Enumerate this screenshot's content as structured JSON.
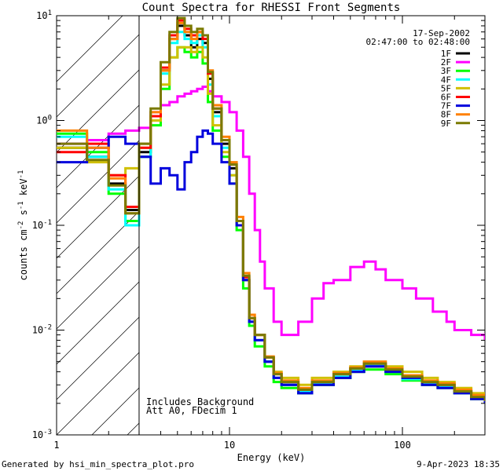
{
  "chart_data": {
    "type": "line",
    "title": "Count Spectra for RHESSI Front Segments",
    "xlabel": "Energy (keV)",
    "ylabel": "counts cm-2 s-1 keV-1",
    "xscale": "log",
    "yscale": "log",
    "xlim": [
      1,
      300
    ],
    "ylim": [
      0.001,
      10
    ],
    "x_ticks": [
      {
        "value": 1,
        "label": "1"
      },
      {
        "value": 10,
        "label": "10"
      },
      {
        "value": 100,
        "label": "100"
      }
    ],
    "y_ticks": [
      {
        "value": 0.001,
        "base": "10",
        "exp": "-3"
      },
      {
        "value": 0.01,
        "base": "10",
        "exp": "-2"
      },
      {
        "value": 0.1,
        "base": "10",
        "exp": "-1"
      },
      {
        "value": 1,
        "base": "10",
        "exp": "0"
      },
      {
        "value": 10,
        "base": "10",
        "exp": "1"
      }
    ],
    "hatched_region": {
      "from": 1,
      "to": 3
    },
    "date": "17-Sep-2002",
    "time_range": "02:47:00 to 02:48:00",
    "annotations": [
      "Includes Background",
      "Att A0, FDecim 1"
    ],
    "legend_position": "top-right",
    "series": [
      {
        "name": "1F",
        "color": "#000000",
        "x": [
          1.0,
          1.5,
          2.0,
          2.5,
          3.0,
          3.5,
          4.0,
          4.5,
          5.0,
          5.5,
          6.0,
          6.5,
          7.0,
          7.5,
          8.0,
          9.0,
          10.0,
          11.0,
          12.0,
          13.0,
          14.0,
          16.0,
          18.0,
          20.0,
          25.0,
          30.0,
          40.0,
          50.0,
          60.0,
          80.0,
          100.0,
          130.0,
          160.0,
          200.0,
          250.0,
          300.0
        ],
        "y": [
          0.55,
          0.45,
          0.25,
          0.14,
          0.5,
          1.0,
          3.0,
          6.0,
          8.0,
          6.5,
          5.0,
          6.0,
          5.5,
          2.5,
          1.2,
          0.6,
          0.35,
          0.1,
          0.03,
          0.012,
          0.008,
          0.005,
          0.0035,
          0.003,
          0.0025,
          0.003,
          0.0035,
          0.004,
          0.0045,
          0.004,
          0.0035,
          0.003,
          0.003,
          0.0025,
          0.0022,
          0.002
        ]
      },
      {
        "name": "2F",
        "color": "#ff00ff",
        "x": [
          1.0,
          1.5,
          2.0,
          2.5,
          3.0,
          3.5,
          4.0,
          4.5,
          5.0,
          5.5,
          6.0,
          6.5,
          7.0,
          7.5,
          8.0,
          9.0,
          10.0,
          11.0,
          12.0,
          13.0,
          14.0,
          15.0,
          16.0,
          18.0,
          20.0,
          25.0,
          30.0,
          35.0,
          40.0,
          50.0,
          60.0,
          70.0,
          80.0,
          100.0,
          120.0,
          150.0,
          180.0,
          200.0,
          250.0,
          300.0
        ],
        "y": [
          0.6,
          0.65,
          0.75,
          0.8,
          0.85,
          1.2,
          1.4,
          1.5,
          1.7,
          1.8,
          1.9,
          2.0,
          2.1,
          1.9,
          1.7,
          1.5,
          1.2,
          0.8,
          0.45,
          0.2,
          0.09,
          0.045,
          0.025,
          0.012,
          0.009,
          0.012,
          0.02,
          0.028,
          0.03,
          0.04,
          0.045,
          0.038,
          0.03,
          0.025,
          0.02,
          0.015,
          0.012,
          0.01,
          0.009,
          0.008
        ]
      },
      {
        "name": "3F",
        "color": "#00ff00",
        "x": [
          1.0,
          1.5,
          2.0,
          2.5,
          3.0,
          3.5,
          4.0,
          4.5,
          5.0,
          5.5,
          6.0,
          6.5,
          7.0,
          7.5,
          8.0,
          9.0,
          10.0,
          11.0,
          12.0,
          13.0,
          14.0,
          16.0,
          18.0,
          20.0,
          25.0,
          30.0,
          40.0,
          50.0,
          60.0,
          80.0,
          100.0,
          130.0,
          160.0,
          200.0,
          250.0,
          300.0
        ],
        "y": [
          0.75,
          0.5,
          0.2,
          0.11,
          0.45,
          0.9,
          2.0,
          4.0,
          5.0,
          4.5,
          4.0,
          4.5,
          3.5,
          1.5,
          0.8,
          0.45,
          0.25,
          0.09,
          0.025,
          0.011,
          0.007,
          0.0045,
          0.0032,
          0.0028,
          0.0025,
          0.003,
          0.0035,
          0.004,
          0.0042,
          0.0038,
          0.0033,
          0.003,
          0.0028,
          0.0025,
          0.0022,
          0.002
        ]
      },
      {
        "name": "4F",
        "color": "#00ffff",
        "x": [
          1.0,
          1.5,
          2.0,
          2.5,
          3.0,
          3.5,
          4.0,
          4.5,
          5.0,
          5.5,
          6.0,
          6.5,
          7.0,
          7.5,
          8.0,
          9.0,
          10.0,
          11.0,
          12.0,
          13.0,
          14.0,
          16.0,
          18.0,
          20.0,
          25.0,
          30.0,
          40.0,
          50.0,
          60.0,
          80.0,
          100.0,
          130.0,
          160.0,
          200.0,
          250.0,
          300.0
        ],
        "y": [
          0.7,
          0.45,
          0.22,
          0.1,
          0.45,
          1.0,
          2.8,
          5.5,
          7.0,
          6.0,
          5.5,
          6.5,
          5.0,
          2.2,
          1.1,
          0.55,
          0.3,
          0.1,
          0.03,
          0.012,
          0.008,
          0.005,
          0.0035,
          0.003,
          0.0026,
          0.0031,
          0.0036,
          0.0041,
          0.0046,
          0.004,
          0.0034,
          0.0031,
          0.0029,
          0.0026,
          0.0023,
          0.002
        ]
      },
      {
        "name": "5F",
        "color": "#d0c000",
        "x": [
          1.0,
          1.5,
          2.0,
          2.5,
          3.0,
          3.5,
          4.0,
          4.5,
          5.0,
          5.5,
          6.0,
          6.5,
          7.0,
          7.5,
          8.0,
          9.0,
          10.0,
          11.0,
          12.0,
          13.0,
          14.0,
          16.0,
          18.0,
          20.0,
          25.0,
          30.0,
          40.0,
          50.0,
          60.0,
          80.0,
          100.0,
          130.0,
          160.0,
          200.0,
          250.0,
          300.0
        ],
        "y": [
          0.55,
          0.4,
          0.3,
          0.35,
          0.55,
          1.0,
          2.2,
          4.0,
          5.0,
          5.0,
          4.5,
          5.0,
          4.0,
          1.8,
          0.9,
          0.5,
          0.3,
          0.1,
          0.03,
          0.013,
          0.009,
          0.0055,
          0.004,
          0.0035,
          0.003,
          0.0035,
          0.004,
          0.0045,
          0.005,
          0.0045,
          0.004,
          0.0035,
          0.0032,
          0.0028,
          0.0025,
          0.0022
        ]
      },
      {
        "name": "6F",
        "color": "#ff0000",
        "x": [
          1.0,
          1.5,
          2.0,
          2.5,
          3.0,
          3.5,
          4.0,
          4.5,
          5.0,
          5.5,
          6.0,
          6.5,
          7.0,
          7.5,
          8.0,
          9.0,
          10.0,
          11.0,
          12.0,
          13.0,
          14.0,
          16.0,
          18.0,
          20.0,
          25.0,
          30.0,
          40.0,
          50.0,
          60.0,
          80.0,
          100.0,
          130.0,
          160.0,
          200.0,
          250.0,
          300.0
        ],
        "y": [
          0.5,
          0.6,
          0.3,
          0.15,
          0.55,
          1.1,
          3.2,
          6.5,
          9.0,
          7.5,
          6.5,
          7.0,
          6.0,
          2.8,
          1.3,
          0.65,
          0.38,
          0.11,
          0.032,
          0.013,
          0.009,
          0.0055,
          0.0038,
          0.0032,
          0.0027,
          0.0032,
          0.0038,
          0.0043,
          0.0048,
          0.0042,
          0.0036,
          0.0032,
          0.003,
          0.0026,
          0.0023,
          0.0021
        ]
      },
      {
        "name": "7F",
        "color": "#0000dd",
        "x": [
          1.0,
          1.5,
          2.0,
          2.5,
          3.0,
          3.5,
          4.0,
          4.5,
          5.0,
          5.5,
          6.0,
          6.5,
          7.0,
          7.5,
          8.0,
          9.0,
          10.0,
          11.0,
          12.0,
          13.0,
          14.0,
          16.0,
          18.0,
          20.0,
          25.0,
          30.0,
          40.0,
          50.0,
          60.0,
          80.0,
          100.0,
          130.0,
          160.0,
          200.0,
          250.0,
          300.0
        ],
        "y": [
          0.4,
          0.55,
          0.7,
          0.6,
          0.45,
          0.25,
          0.35,
          0.3,
          0.22,
          0.4,
          0.5,
          0.7,
          0.8,
          0.75,
          0.6,
          0.4,
          0.25,
          0.1,
          0.03,
          0.012,
          0.008,
          0.005,
          0.0035,
          0.003,
          0.0025,
          0.003,
          0.0035,
          0.004,
          0.0045,
          0.004,
          0.0035,
          0.003,
          0.0028,
          0.0025,
          0.0022,
          0.002
        ]
      },
      {
        "name": "8F",
        "color": "#ff8000",
        "x": [
          1.0,
          1.5,
          2.0,
          2.5,
          3.0,
          3.5,
          4.0,
          4.5,
          5.0,
          5.5,
          6.0,
          6.5,
          7.0,
          7.5,
          8.0,
          9.0,
          10.0,
          11.0,
          12.0,
          13.0,
          14.0,
          16.0,
          18.0,
          20.0,
          25.0,
          30.0,
          40.0,
          50.0,
          60.0,
          80.0,
          100.0,
          130.0,
          160.0,
          200.0,
          250.0,
          300.0
        ],
        "y": [
          0.8,
          0.55,
          0.28,
          0.13,
          0.6,
          1.2,
          3.0,
          6.0,
          8.5,
          7.0,
          6.0,
          7.0,
          6.5,
          3.0,
          1.4,
          0.7,
          0.4,
          0.12,
          0.035,
          0.014,
          0.009,
          0.0056,
          0.0039,
          0.0033,
          0.0028,
          0.0033,
          0.0039,
          0.0044,
          0.005,
          0.0043,
          0.0037,
          0.0033,
          0.0031,
          0.0027,
          0.0024,
          0.0021
        ]
      },
      {
        "name": "9F",
        "color": "#7a7a00",
        "x": [
          1.0,
          1.5,
          2.0,
          2.5,
          3.0,
          3.5,
          4.0,
          4.5,
          5.0,
          5.5,
          6.0,
          6.5,
          7.0,
          7.5,
          8.0,
          9.0,
          10.0,
          11.0,
          12.0,
          13.0,
          14.0,
          16.0,
          18.0,
          20.0,
          25.0,
          30.0,
          40.0,
          50.0,
          60.0,
          80.0,
          100.0,
          130.0,
          160.0,
          200.0,
          250.0,
          300.0
        ],
        "y": [
          0.6,
          0.42,
          0.24,
          0.13,
          0.6,
          1.3,
          3.6,
          7.0,
          9.5,
          8.0,
          7.0,
          7.5,
          6.5,
          2.9,
          1.3,
          0.65,
          0.38,
          0.11,
          0.033,
          0.013,
          0.009,
          0.0055,
          0.0038,
          0.0032,
          0.0027,
          0.0032,
          0.0038,
          0.0043,
          0.0048,
          0.0042,
          0.0036,
          0.0032,
          0.003,
          0.0026,
          0.0023,
          0.0021
        ]
      }
    ]
  },
  "footer": {
    "generated_by": "Generated by hsi_min_spectra_plot.pro",
    "timestamp": "9-Apr-2023 18:35"
  }
}
